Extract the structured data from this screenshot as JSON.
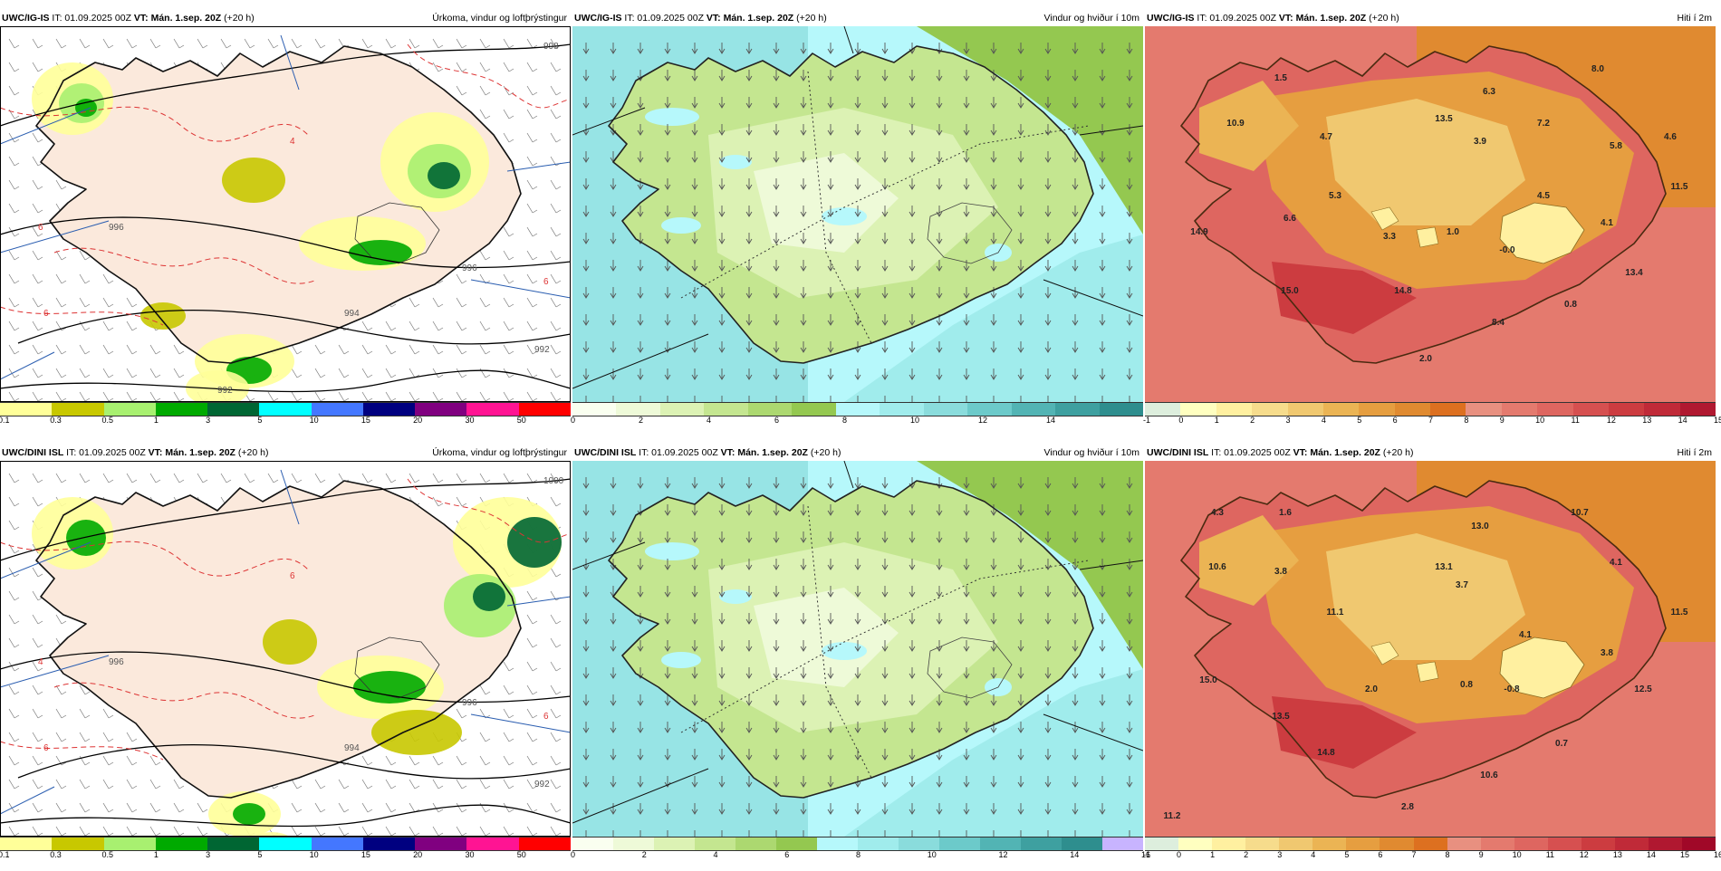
{
  "panels": [
    {
      "model": "UWC/IG-IS",
      "it": "IT: 01.09.2025 00Z",
      "vt": "VT: Mán. 1.sep. 20Z",
      "lead": "(+20 h)",
      "title": "Úrkoma, vindur og loftþrýstingur",
      "type": "precip",
      "colors": [
        "#ffff99",
        "#c8c800",
        "#a8f070",
        "#00aa00",
        "#006633",
        "#00ffff",
        "#4477ff",
        "#000080",
        "#800080",
        "#ff1493",
        "#ff0000"
      ],
      "ticks": [
        "0.1",
        "0.3",
        "0.5",
        "1",
        "3",
        "5",
        "10",
        "15",
        "20",
        "30",
        "50"
      ],
      "isobars": [
        "998",
        "996",
        "996",
        "994",
        "992",
        "992"
      ],
      "temps": [
        "6",
        "6",
        "4",
        "6"
      ]
    },
    {
      "model": "UWC/IG-IS",
      "it": "IT: 01.09.2025 00Z",
      "vt": "VT: Mán. 1.sep. 20Z",
      "lead": "(+20 h)",
      "title": "Vindur og hviður í 10m",
      "type": "wind",
      "colors": [
        "#fafff0",
        "#eefad8",
        "#dcf2b4",
        "#c4e690",
        "#acd870",
        "#94c850",
        "#b6f8fb",
        "#a0ecec",
        "#8adcdc",
        "#6ccaca",
        "#52b4b4",
        "#3ea0a0",
        "#2e8e8e"
      ],
      "ticks": [
        "0",
        "2",
        "4",
        "6",
        "8",
        "10",
        "12",
        "14"
      ]
    },
    {
      "model": "UWC/IG-IS",
      "it": "IT: 01.09.2025 00Z",
      "vt": "VT: Mán. 1.sep. 20Z",
      "lead": "(+20 h)",
      "title": "Hiti í 2m",
      "type": "temp",
      "colors": [
        "#ddeedd",
        "#ffffc0",
        "#fff0a0",
        "#f6dc8c",
        "#f0c870",
        "#ebb454",
        "#e69e40",
        "#e08a30",
        "#dd7020",
        "#e89080",
        "#e47a6e",
        "#de6660",
        "#d65050",
        "#cc3c40",
        "#c02a38",
        "#b01830"
      ],
      "ticks": [
        "-1",
        "0",
        "1",
        "2",
        "3",
        "4",
        "5",
        "6",
        "7",
        "8",
        "9",
        "10",
        "11",
        "12",
        "13",
        "14",
        "15"
      ],
      "values": [
        "1.5",
        "8.0",
        "10.9",
        "6.3",
        "13.5",
        "4.7",
        "7.2",
        "3.9",
        "5.8",
        "4.6",
        "5.3",
        "4.5",
        "11.5",
        "6.6",
        "14.9",
        "3.3",
        "1.0",
        "4.1",
        "-0.0",
        "13.4",
        "15.0",
        "14.8",
        "0.8",
        "8.4",
        "2.0"
      ]
    },
    {
      "model": "UWC/DINI ISL",
      "it": "IT: 01.09.2025 00Z",
      "vt": "VT: Mán. 1.sep. 20Z",
      "lead": "(+20 h)",
      "title": "Úrkoma, vindur og loftþrýstingur",
      "type": "precip",
      "colors": [
        "#ffff99",
        "#c8c800",
        "#a8f070",
        "#00aa00",
        "#006633",
        "#00ffff",
        "#4477ff",
        "#000080",
        "#800080",
        "#ff1493",
        "#ff0000"
      ],
      "ticks": [
        "0.1",
        "0.3",
        "0.5",
        "1",
        "3",
        "5",
        "10",
        "15",
        "20",
        "30",
        "50"
      ],
      "isobars": [
        "1000",
        "996",
        "996",
        "994",
        "992"
      ],
      "temps": [
        "4",
        "6",
        "6",
        "6"
      ]
    },
    {
      "model": "UWC/DINI ISL",
      "it": "IT: 01.09.2025 00Z",
      "vt": "VT: Mán. 1.sep. 20Z",
      "lead": "(+20 h)",
      "title": "Vindur og hviður í 10m",
      "type": "wind",
      "colors": [
        "#fafff0",
        "#eefad8",
        "#dcf2b4",
        "#c4e690",
        "#acd870",
        "#94c850",
        "#b6f8fb",
        "#a0ecec",
        "#8adcdc",
        "#6ccaca",
        "#52b4b4",
        "#3ea0a0",
        "#2e8e8e",
        "#c8b4ff"
      ],
      "ticks": [
        "0",
        "2",
        "4",
        "6",
        "8",
        "10",
        "12",
        "14",
        "16"
      ]
    },
    {
      "model": "UWC/DINI ISL",
      "it": "IT: 01.09.2025 00Z",
      "vt": "VT: Mán. 1.sep. 20Z",
      "lead": "(+20 h)",
      "title": "Hiti í 2m",
      "type": "temp",
      "colors": [
        "#ddeedd",
        "#ffffc0",
        "#fff0a0",
        "#f6dc8c",
        "#f0c870",
        "#ebb454",
        "#e69e40",
        "#e08a30",
        "#dd7020",
        "#e89080",
        "#e47a6e",
        "#de6660",
        "#d65050",
        "#cc3c40",
        "#c02a38",
        "#b01830",
        "#a00828"
      ],
      "ticks": [
        "-1",
        "0",
        "1",
        "2",
        "3",
        "4",
        "5",
        "6",
        "7",
        "8",
        "9",
        "10",
        "11",
        "12",
        "13",
        "14",
        "15",
        "16"
      ],
      "values": [
        "4.3",
        "1.6",
        "10.7",
        "13.0",
        "10.6",
        "3.8",
        "13.1",
        "4.1",
        "3.7",
        "11.1",
        "11.5",
        "4.1",
        "3.8",
        "15.0",
        "2.0",
        "0.8",
        "-0.8",
        "12.5",
        "13.5",
        "14.8",
        "0.7",
        "10.6",
        "2.8",
        "11.2"
      ]
    }
  ]
}
